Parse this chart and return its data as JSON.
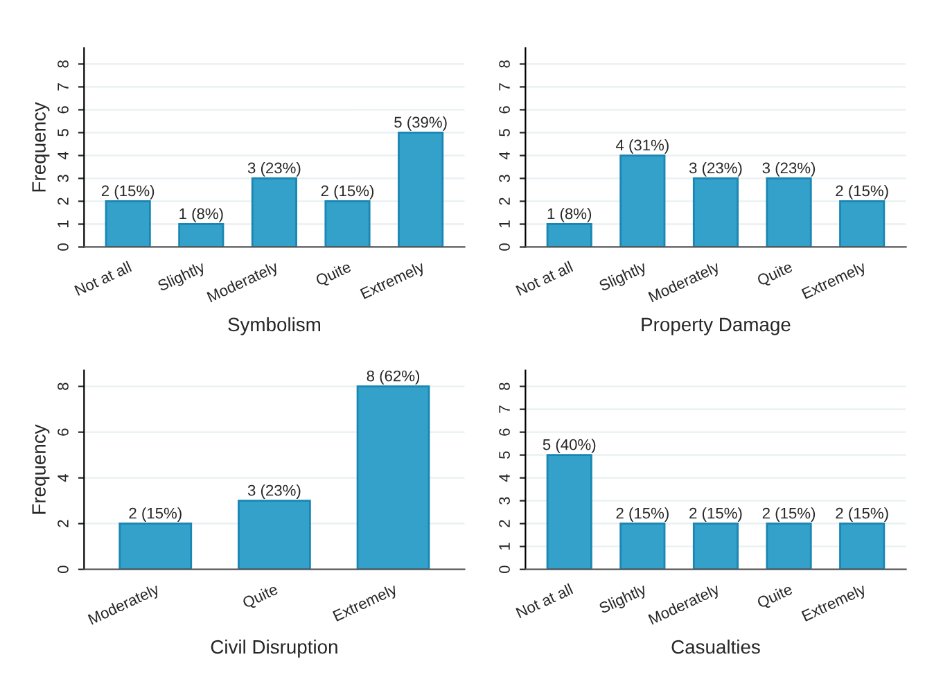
{
  "chart_data": [
    {
      "type": "bar",
      "xlabel": "Symbolism",
      "ylabel": "Frequency",
      "categories": [
        "Not at all",
        "Slightly",
        "Moderately",
        "Quite",
        "Extremely"
      ],
      "values": [
        2,
        1,
        3,
        2,
        5
      ],
      "value_labels": [
        "2 (15%)",
        "1 (8%)",
        "3 (23%)",
        "2 (15%)",
        "5 (39%)"
      ],
      "color": "#33a1c9",
      "ylim": [
        0,
        8.7
      ],
      "yticks": [
        0,
        1,
        2,
        3,
        4,
        5,
        6,
        7,
        8
      ],
      "grid": "y"
    },
    {
      "type": "bar",
      "xlabel": "Property Damage",
      "categories": [
        "Not at all",
        "Slightly",
        "Moderately",
        "Quite",
        "Extremely"
      ],
      "values": [
        1,
        4,
        3,
        3,
        2
      ],
      "value_labels": [
        "1 (8%)",
        "4 (31%)",
        "3 (23%)",
        "3 (23%)",
        "2 (15%)"
      ],
      "color": "#33a1c9",
      "ylim": [
        0,
        8.7
      ],
      "yticks": [
        0,
        1,
        2,
        3,
        4,
        5,
        6,
        7,
        8
      ],
      "grid": "y"
    },
    {
      "type": "bar",
      "xlabel": "Civil Disruption",
      "ylabel": "Frequency",
      "categories": [
        "Moderately",
        "Quite",
        "Extremely"
      ],
      "values": [
        2,
        3,
        8
      ],
      "value_labels": [
        "2 (15%)",
        "3 (23%)",
        "8 (62%)"
      ],
      "color": "#33a1c9",
      "ylim": [
        0,
        8.7
      ],
      "yticks": [
        0,
        2,
        4,
        6,
        8
      ],
      "grid": "y"
    },
    {
      "type": "bar",
      "xlabel": "Casualties",
      "categories": [
        "Not at all",
        "Slightly",
        "Moderately",
        "Quite",
        "Extremely"
      ],
      "values": [
        5,
        2,
        2,
        2,
        2
      ],
      "value_labels": [
        "5 (40%)",
        "2 (15%)",
        "2 (15%)",
        "2 (15%)",
        "2 (15%)"
      ],
      "color": "#33a1c9",
      "ylim": [
        0,
        8.7
      ],
      "yticks": [
        0,
        1,
        2,
        3,
        4,
        5,
        6,
        7,
        8
      ],
      "grid": "y"
    }
  ]
}
